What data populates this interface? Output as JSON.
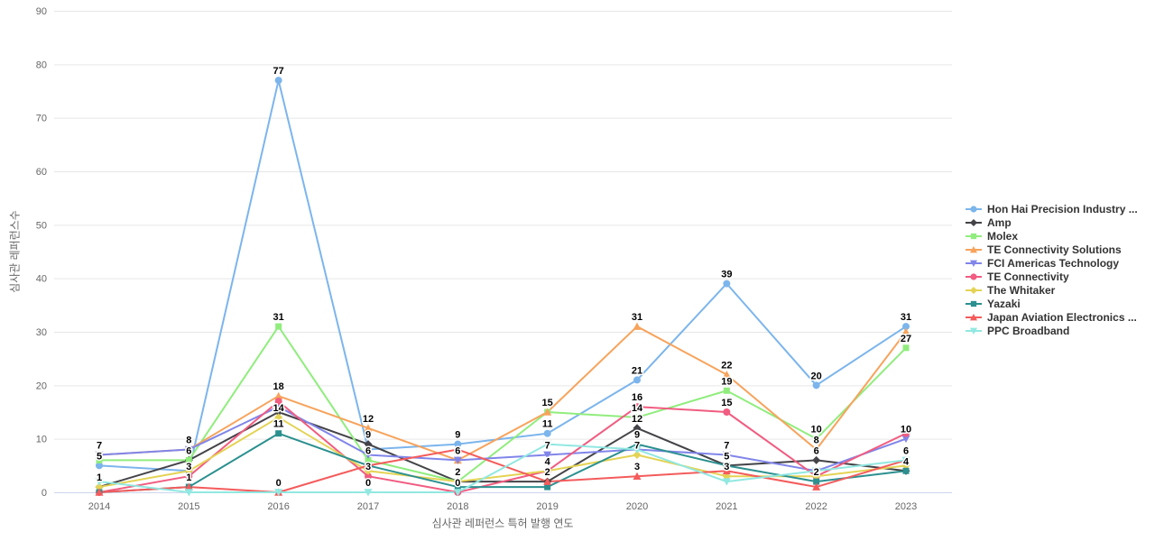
{
  "chart_data": {
    "type": "line",
    "title": "",
    "xlabel": "심사관 레퍼런스 특허 발행 연도",
    "ylabel": "심사관 레퍼런스수",
    "x_categories": [
      "2014",
      "2015",
      "2016",
      "2017",
      "2018",
      "2019",
      "2020",
      "2021",
      "2022",
      "2023"
    ],
    "ylim": [
      0,
      90
    ],
    "y_ticks": [
      0,
      10,
      20,
      30,
      40,
      50,
      60,
      70,
      80,
      90
    ],
    "grid": "horizontal-only",
    "legend_position": "right-middle",
    "colors": {
      "grid": "#e6e6e6",
      "axis_line": "#ccd6eb",
      "tick_label": "#666666",
      "axis_title": "#666666",
      "data_label": "#000000",
      "legend_text": "#333333"
    },
    "series": [
      {
        "name": "Hon Hai Precision Industry ...",
        "color": "#7cb5ec",
        "marker": "circle",
        "values": [
          5,
          4,
          77,
          8,
          9,
          11,
          21,
          39,
          20,
          31
        ],
        "labeled": [
          1,
          0,
          1,
          0,
          1,
          1,
          1,
          1,
          1,
          1
        ]
      },
      {
        "name": "Amp",
        "color": "#434348",
        "marker": "diamond",
        "values": [
          1,
          6,
          15,
          9,
          2,
          2,
          12,
          5,
          6,
          4
        ],
        "labeled": [
          0,
          1,
          0,
          1,
          0,
          0,
          1,
          1,
          1,
          1
        ]
      },
      {
        "name": "Molex",
        "color": "#90ed7d",
        "marker": "square",
        "values": [
          6,
          6,
          31,
          6,
          2,
          15,
          14,
          19,
          10,
          27
        ],
        "labeled": [
          0,
          0,
          1,
          1,
          1,
          1,
          1,
          1,
          1,
          1
        ]
      },
      {
        "name": "TE Connectivity Solutions",
        "color": "#f7a35c",
        "marker": "triangle",
        "values": [
          7,
          8,
          18,
          12,
          6,
          15,
          31,
          22,
          8,
          30
        ],
        "labeled": [
          1,
          0,
          1,
          1,
          0,
          0,
          1,
          1,
          1,
          0
        ]
      },
      {
        "name": "FCI Americas Technology",
        "color": "#8085e9",
        "marker": "triangle-down",
        "values": [
          7,
          8,
          16,
          7,
          6,
          7,
          8,
          7,
          4,
          10
        ],
        "labeled": [
          0,
          1,
          0,
          0,
          1,
          1,
          0,
          1,
          0,
          1
        ]
      },
      {
        "name": "TE Connectivity",
        "color": "#f15c80",
        "marker": "circle",
        "values": [
          0,
          3,
          17,
          3,
          0,
          4,
          16,
          15,
          3,
          11
        ],
        "labeled": [
          0,
          1,
          0,
          1,
          0,
          0,
          1,
          1,
          0,
          0
        ]
      },
      {
        "name": "The Whitaker",
        "color": "#e4d354",
        "marker": "diamond",
        "values": [
          1,
          4,
          14,
          4,
          2,
          4,
          7,
          3,
          3,
          5
        ],
        "labeled": [
          1,
          0,
          1,
          0,
          0,
          1,
          1,
          1,
          0,
          0
        ]
      },
      {
        "name": "Yazaki",
        "color": "#2b908f",
        "marker": "square",
        "values": [
          0,
          1,
          11,
          5,
          1,
          1,
          9,
          5,
          2,
          4
        ],
        "labeled": [
          0,
          1,
          1,
          0,
          0,
          0,
          1,
          0,
          1,
          0
        ]
      },
      {
        "name": "Japan Aviation Electronics ...",
        "color": "#f45b5b",
        "marker": "triangle",
        "values": [
          0,
          1,
          0,
          5,
          8,
          2,
          3,
          4,
          1,
          6
        ],
        "labeled": [
          0,
          0,
          1,
          0,
          0,
          1,
          1,
          0,
          0,
          1
        ]
      },
      {
        "name": "PPC Broadband",
        "color": "#91e8e1",
        "marker": "triangle-down",
        "values": [
          2,
          0,
          0,
          0,
          0,
          9,
          8,
          2,
          4,
          6
        ],
        "labeled": [
          0,
          0,
          0,
          1,
          1,
          0,
          0,
          0,
          0,
          0
        ]
      }
    ]
  }
}
